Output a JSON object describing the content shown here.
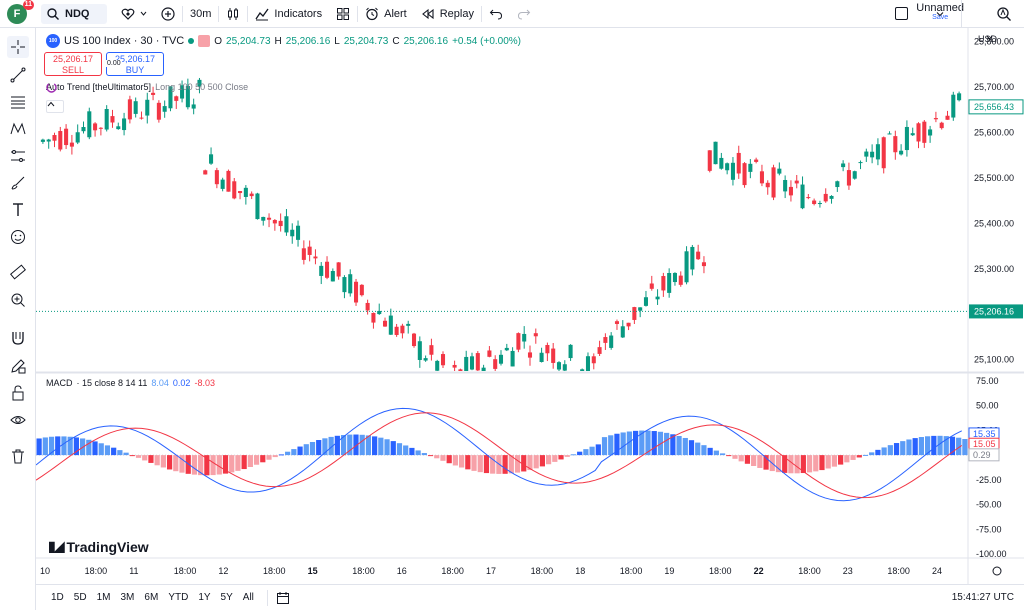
{
  "topbar": {
    "avatar_letter": "F",
    "notification_count": "11",
    "symbol": "NDQ",
    "interval": "30m",
    "indicators_label": "Indicators",
    "alert_label": "Alert",
    "replay_label": "Replay",
    "layout_name": "Unnamed",
    "save_label": "Save"
  },
  "legend": {
    "logo_text": "100",
    "title": "US 100 Index · 30 · TVC",
    "o_label": "O",
    "o": "25,204.73",
    "h_label": "H",
    "h": "25,206.16",
    "l_label": "L",
    "l": "25,204.73",
    "c_label": "C",
    "c": "25,206.16",
    "change": "+0.54 (+0.00%)",
    "sell_price": "25,206.17",
    "sell_label": "SELL",
    "buy_price": "25,206.17",
    "buy_label": "BUY",
    "spread": "0.00",
    "indicator": "Auto Trend [theUltimator5]",
    "indicator_params": "Long 100 50 500 Close"
  },
  "currency": "USD",
  "macd_legend": {
    "name": "MACD",
    "params": "· 15 close 8 14 11",
    "v1": "8.04",
    "v2": "0.02",
    "v3": "-8.03"
  },
  "brand": "TradingView",
  "bottombar": {
    "ranges": [
      "1D",
      "5D",
      "1M",
      "3M",
      "6M",
      "YTD",
      "1Y",
      "5Y",
      "All"
    ],
    "clock": "15:41:27 UTC"
  },
  "colors": {
    "up": "#089981",
    "down": "#f23645",
    "macd": "#2962ff",
    "signal": "#f23645",
    "accent": "#2962ff"
  },
  "chart_data": {
    "type": "candlestick",
    "price_axis_ticks": [
      "25,800.00",
      "25,700.00",
      "25,600.00",
      "25,500.00",
      "25,400.00",
      "25,300.00",
      "25,200.00",
      "25,100.00"
    ],
    "price_axis_values": [
      25800,
      25700,
      25600,
      25500,
      25400,
      25300,
      25200,
      25100
    ],
    "price_range": [
      25075,
      25830
    ],
    "last_price_label": "25,656.43",
    "last_price": 25656.43,
    "crosshair_price_label": "25,206.16",
    "crosshair_price": 25206.16,
    "x_ticks": [
      "10",
      "18:00",
      "11",
      "18:00",
      "12",
      "18:00",
      "15",
      "18:00",
      "16",
      "18:00",
      "17",
      "18:00",
      "18",
      "18:00",
      "19",
      "18:00",
      "22",
      "18:00",
      "23",
      "18:00",
      "24"
    ],
    "macd_axis_ticks": [
      "75.00",
      "50.00",
      "25.00",
      "-25.00",
      "-50.00",
      "-75.00",
      "-100.00"
    ],
    "macd_axis_values": [
      75,
      50,
      25,
      -25,
      -50,
      -75,
      -100
    ],
    "macd_range": [
      -104,
      82
    ],
    "macd_labels": [
      "15.35",
      "15.05",
      "0.29"
    ],
    "macd_values": [
      15.35,
      15.05,
      0.29
    ],
    "segments": [
      {
        "start": 25580,
        "end": 25690,
        "n": 28
      },
      {
        "start": 25540,
        "end": 25080,
        "n": 42
      },
      {
        "start": 25060,
        "end": 25120,
        "n": 12
      },
      {
        "start": 25150,
        "end": 25080,
        "n": 14
      },
      {
        "start": 25130,
        "end": 25340,
        "n": 19
      },
      {
        "start": 25550,
        "end": 25460,
        "n": 18
      },
      {
        "start": 25460,
        "end": 25660,
        "n": 26
      }
    ]
  }
}
